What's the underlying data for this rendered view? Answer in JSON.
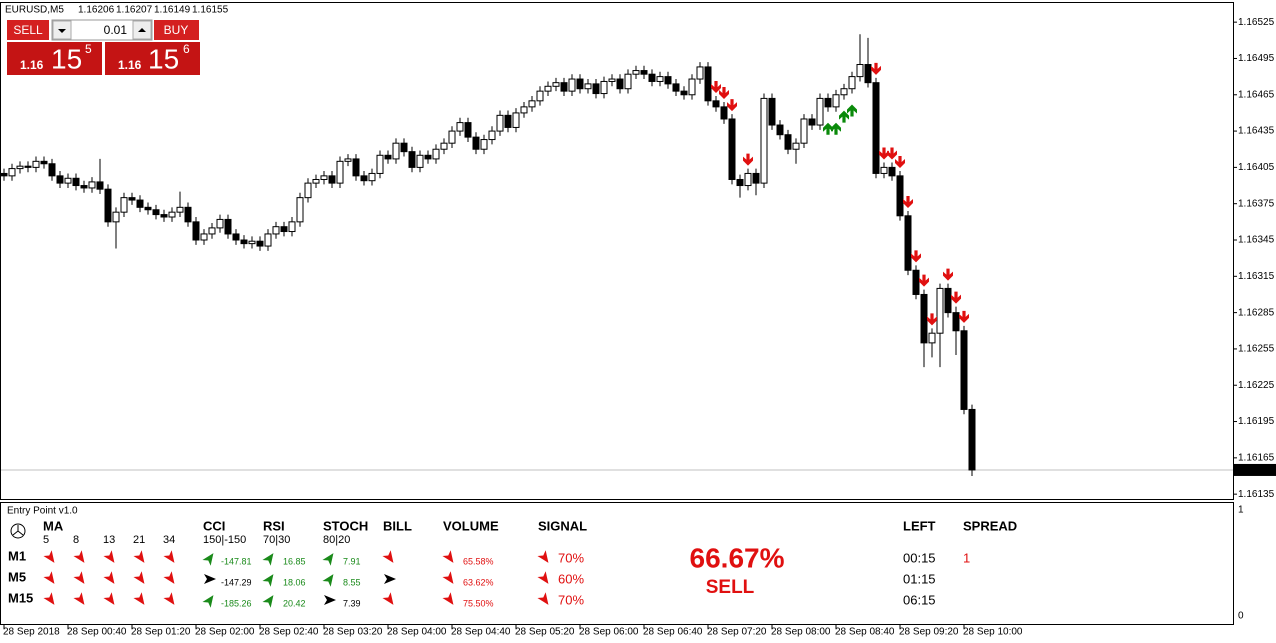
{
  "header": {
    "symbol": "EURUSD,M5",
    "quote": [
      1.16206,
      1.16207,
      1.16149,
      1.16155
    ]
  },
  "trade": {
    "sell_label": "SELL",
    "buy_label": "BUY",
    "lot": "0.01",
    "sell_price": {
      "big": "1.16",
      "pips": "15",
      "frac": "5"
    },
    "buy_price": {
      "big": "1.16",
      "pips": "15",
      "frac": "6"
    }
  },
  "chart": {
    "type": "candlestick",
    "ylim": [
      1.16131,
      1.1654
    ],
    "yticks": [
      1.16525,
      1.16495,
      1.16465,
      1.16435,
      1.16405,
      1.16375,
      1.16345,
      1.16315,
      1.16285,
      1.16255,
      1.16225,
      1.16195,
      1.16165,
      1.16135
    ],
    "current_price": 1.16155,
    "time_labels": [
      "28 Sep 2018",
      "28 Sep 00:40",
      "28 Sep 01:20",
      "28 Sep 02:00",
      "28 Sep 02:40",
      "28 Sep 03:20",
      "28 Sep 04:00",
      "28 Sep 04:40",
      "28 Sep 05:20",
      "28 Sep 06:00",
      "28 Sep 06:40",
      "28 Sep 07:20",
      "28 Sep 08:00",
      "28 Sep 08:40",
      "28 Sep 09:20",
      "28 Sep 10:00"
    ],
    "open": [
      1.164,
      1.16398,
      1.16404,
      1.16406,
      1.16405,
      1.1641,
      1.16408,
      1.16398,
      1.16392,
      1.16396,
      1.1639,
      1.16388,
      1.16393,
      1.16387,
      1.1636,
      1.16368,
      1.1638,
      1.16378,
      1.16372,
      1.1637,
      1.16366,
      1.16364,
      1.16368,
      1.16372,
      1.1636,
      1.16345,
      1.1635,
      1.16355,
      1.16362,
      1.1635,
      1.16345,
      1.16342,
      1.16344,
      1.1634,
      1.1635,
      1.16356,
      1.16352,
      1.1636,
      1.1638,
      1.16392,
      1.16395,
      1.16398,
      1.16392,
      1.1641,
      1.16412,
      1.16398,
      1.16394,
      1.164,
      1.16415,
      1.16412,
      1.16425,
      1.16418,
      1.16405,
      1.16415,
      1.16412,
      1.1642,
      1.16425,
      1.16435,
      1.16442,
      1.1643,
      1.1642,
      1.16428,
      1.16435,
      1.16448,
      1.16438,
      1.1645,
      1.16455,
      1.1646,
      1.16468,
      1.16472,
      1.16475,
      1.16468,
      1.16478,
      1.1647,
      1.16474,
      1.16466,
      1.16476,
      1.16478,
      1.1647,
      1.16482,
      1.16485,
      1.16482,
      1.16476,
      1.1648,
      1.16474,
      1.16468,
      1.16465,
      1.16478,
      1.16488,
      1.1646,
      1.16455,
      1.16445,
      1.16395,
      1.1639,
      1.164,
      1.16392,
      1.16462,
      1.1644,
      1.16432,
      1.1642,
      1.16425,
      1.16445,
      1.1644,
      1.16462,
      1.16455,
      1.16465,
      1.1647,
      1.1648,
      1.1649,
      1.16475,
      1.164,
      1.16405,
      1.16398,
      1.16365,
      1.1632,
      1.163,
      1.1626,
      1.16268,
      1.16305,
      1.16285,
      1.1627,
      1.16205
    ],
    "high": [
      1.16404,
      1.16408,
      1.1641,
      1.1641,
      1.16414,
      1.16414,
      1.16412,
      1.16402,
      1.164,
      1.164,
      1.16394,
      1.16397,
      1.16412,
      1.16391,
      1.16372,
      1.16384,
      1.16384,
      1.16382,
      1.16376,
      1.16374,
      1.1637,
      1.16372,
      1.16385,
      1.16376,
      1.16364,
      1.16354,
      1.16359,
      1.16366,
      1.16366,
      1.16354,
      1.16349,
      1.16348,
      1.16348,
      1.16354,
      1.1636,
      1.1636,
      1.16364,
      1.16384,
      1.16396,
      1.16399,
      1.16402,
      1.16402,
      1.16414,
      1.16416,
      1.16416,
      1.16402,
      1.16404,
      1.16419,
      1.16419,
      1.16429,
      1.16429,
      1.16422,
      1.16419,
      1.16419,
      1.16424,
      1.16429,
      1.16439,
      1.16446,
      1.16446,
      1.16434,
      1.16432,
      1.16439,
      1.16452,
      1.16452,
      1.16454,
      1.16459,
      1.16464,
      1.16472,
      1.16476,
      1.16479,
      1.16479,
      1.16482,
      1.16482,
      1.16478,
      1.16478,
      1.1648,
      1.16482,
      1.16482,
      1.16486,
      1.16489,
      1.16489,
      1.16486,
      1.16484,
      1.16484,
      1.16478,
      1.16472,
      1.16482,
      1.16492,
      1.16492,
      1.16464,
      1.16459,
      1.16449,
      1.16399,
      1.16404,
      1.16404,
      1.16466,
      1.16466,
      1.16444,
      1.16436,
      1.16429,
      1.16449,
      1.16449,
      1.16466,
      1.16466,
      1.16469,
      1.16474,
      1.16484,
      1.16515,
      1.16512,
      1.16479,
      1.16409,
      1.16409,
      1.16402,
      1.16369,
      1.16324,
      1.16304,
      1.16272,
      1.16309,
      1.16309,
      1.1629,
      1.16274,
      1.16209
    ],
    "low": [
      1.16394,
      1.16394,
      1.164,
      1.16401,
      1.16401,
      1.16404,
      1.16394,
      1.16388,
      1.16388,
      1.16386,
      1.16384,
      1.16384,
      1.16383,
      1.16356,
      1.16338,
      1.16364,
      1.16374,
      1.16368,
      1.16366,
      1.16362,
      1.1636,
      1.1636,
      1.16364,
      1.16356,
      1.16341,
      1.16341,
      1.16346,
      1.16351,
      1.16346,
      1.16341,
      1.16338,
      1.16338,
      1.16336,
      1.16336,
      1.16346,
      1.16348,
      1.16348,
      1.16356,
      1.16376,
      1.16388,
      1.16391,
      1.16388,
      1.16388,
      1.16406,
      1.16394,
      1.1639,
      1.1639,
      1.16396,
      1.16408,
      1.16408,
      1.16414,
      1.16401,
      1.16401,
      1.16408,
      1.16408,
      1.16416,
      1.16421,
      1.16431,
      1.16426,
      1.16416,
      1.16416,
      1.16424,
      1.16431,
      1.16434,
      1.16434,
      1.16446,
      1.16451,
      1.16456,
      1.16464,
      1.16468,
      1.16464,
      1.16464,
      1.16466,
      1.16466,
      1.16462,
      1.16462,
      1.16472,
      1.16466,
      1.16466,
      1.16478,
      1.16478,
      1.16472,
      1.16472,
      1.1647,
      1.16464,
      1.16461,
      1.16461,
      1.16474,
      1.16456,
      1.16451,
      1.16441,
      1.16391,
      1.1638,
      1.16386,
      1.16382,
      1.16388,
      1.16436,
      1.16428,
      1.16416,
      1.16408,
      1.16421,
      1.16436,
      1.16436,
      1.16451,
      1.16451,
      1.16461,
      1.16466,
      1.16476,
      1.16471,
      1.16396,
      1.16396,
      1.16394,
      1.16361,
      1.16316,
      1.16296,
      1.1624,
      1.16248,
      1.1624,
      1.16281,
      1.1625,
      1.16201,
      1.1615
    ],
    "close": [
      1.16398,
      1.16404,
      1.16406,
      1.16405,
      1.1641,
      1.16408,
      1.16398,
      1.16392,
      1.16396,
      1.1639,
      1.16388,
      1.16393,
      1.16387,
      1.1636,
      1.16368,
      1.1638,
      1.16378,
      1.16372,
      1.1637,
      1.16366,
      1.16364,
      1.16368,
      1.16372,
      1.1636,
      1.16345,
      1.1635,
      1.16355,
      1.16362,
      1.1635,
      1.16345,
      1.16342,
      1.16344,
      1.1634,
      1.1635,
      1.16356,
      1.16352,
      1.1636,
      1.1638,
      1.16392,
      1.16395,
      1.16398,
      1.16392,
      1.1641,
      1.16412,
      1.16398,
      1.16394,
      1.164,
      1.16415,
      1.16412,
      1.16425,
      1.16418,
      1.16405,
      1.16415,
      1.16412,
      1.1642,
      1.16425,
      1.16435,
      1.16442,
      1.1643,
      1.1642,
      1.16428,
      1.16435,
      1.16448,
      1.16438,
      1.1645,
      1.16455,
      1.1646,
      1.16468,
      1.16472,
      1.16475,
      1.16468,
      1.16478,
      1.1647,
      1.16474,
      1.16466,
      1.16476,
      1.16478,
      1.1647,
      1.16482,
      1.16485,
      1.16482,
      1.16476,
      1.1648,
      1.16474,
      1.16468,
      1.16465,
      1.16478,
      1.16488,
      1.1646,
      1.16455,
      1.16445,
      1.16395,
      1.1639,
      1.164,
      1.16392,
      1.16462,
      1.1644,
      1.16432,
      1.1642,
      1.16425,
      1.16445,
      1.1644,
      1.16462,
      1.16455,
      1.16465,
      1.1647,
      1.1648,
      1.1649,
      1.16475,
      1.164,
      1.16405,
      1.16398,
      1.16365,
      1.1632,
      1.163,
      1.1626,
      1.16268,
      1.16305,
      1.16285,
      1.1627,
      1.16205,
      1.16155
    ],
    "sell_arrows": [
      89,
      90,
      91,
      93,
      109,
      110,
      111,
      112,
      113,
      114,
      115,
      116,
      118,
      119,
      120
    ],
    "buy_arrows": [
      103,
      104,
      105,
      106
    ]
  },
  "indicator": {
    "title": "Entry Point v1.0",
    "scale_top": "1",
    "scale_bottom": "0",
    "headers": {
      "ma": "MA",
      "cci": "CCI",
      "rsi": "RSI",
      "stoch": "STOCH",
      "bill": "BILL",
      "volume": "VOLUME",
      "signal": "SIGNAL",
      "left": "LEFT",
      "spread": "SPREAD"
    },
    "ma_periods": [
      5,
      8,
      13,
      21,
      34
    ],
    "cci_levels": "150|-150",
    "rsi_levels": "70|30",
    "stoch_levels": "80|20",
    "rows": [
      {
        "tf": "M1",
        "cci": -147.81,
        "rsi": 16.85,
        "stoch": 7.91,
        "volume": "65.58%",
        "signal": "70%",
        "left": "00:15",
        "spread": 1
      },
      {
        "tf": "M5",
        "cci": -147.29,
        "rsi": 18.06,
        "stoch": 8.55,
        "volume": "63.62%",
        "signal": "60%",
        "left": "01:15"
      },
      {
        "tf": "M15",
        "cci": -185.26,
        "rsi": 20.42,
        "stoch": 7.39,
        "volume": "75.50%",
        "signal": "70%",
        "left": "06:15"
      }
    ],
    "percent": "66.67%",
    "verdict": "SELL"
  }
}
